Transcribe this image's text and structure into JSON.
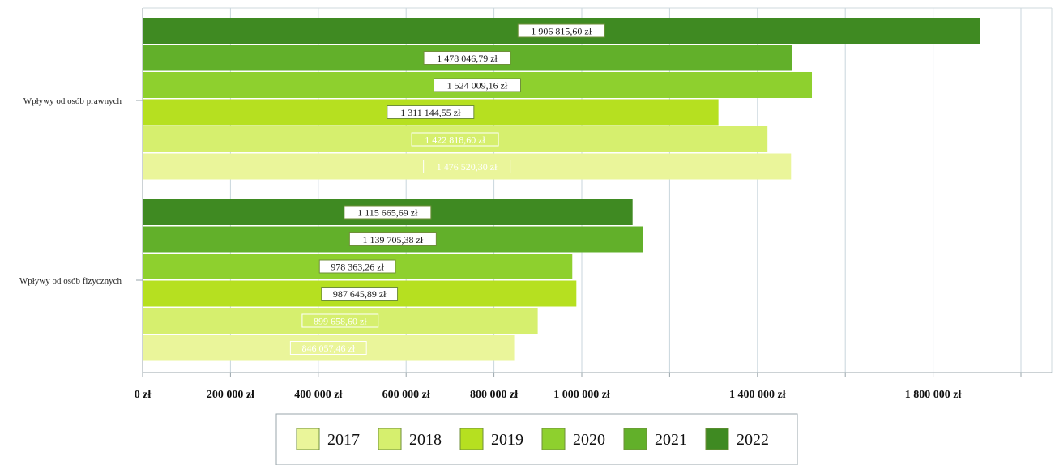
{
  "chart_data": {
    "type": "bar",
    "orientation": "horizontal",
    "categories": [
      "Wpływy od osób prawnych",
      "Wpływy od osób fizycznych"
    ],
    "series": [
      {
        "name": "2017",
        "values": [
          1476520.3,
          846057.46
        ],
        "labels": [
          "1 476 520,30 zł",
          "846 057,46 zł"
        ]
      },
      {
        "name": "2018",
        "values": [
          1422818.6,
          899658.6
        ],
        "labels": [
          "1 422 818,60 zł",
          "899 658,60 zł"
        ]
      },
      {
        "name": "2019",
        "values": [
          1311144.55,
          987645.89
        ],
        "labels": [
          "1 311 144,55 zł",
          "987 645,89 zł"
        ]
      },
      {
        "name": "2020",
        "values": [
          1524009.16,
          978363.26
        ],
        "labels": [
          "1 524 009,16 zł",
          "978 363,26 zł"
        ]
      },
      {
        "name": "2021",
        "values": [
          1478046.79,
          1139705.38
        ],
        "labels": [
          "1 478 046,79 zł",
          "1 139 705,38 zł"
        ]
      },
      {
        "name": "2022",
        "values": [
          1906815.6,
          1115665.69
        ],
        "labels": [
          "1 906 815,60 zł",
          "1 115 665,69 zł"
        ]
      }
    ],
    "xlim": [
      0,
      2000000
    ],
    "x_tick_values": [
      0,
      200000,
      400000,
      600000,
      800000,
      1000000,
      1400000,
      1800000
    ],
    "x_tick_labels": [
      "0 zł",
      "200 000 zł",
      "400 000 zł",
      "600 000 zł",
      "800 000 zł",
      "1 000 000 zł",
      "1 400 000 zł",
      "1 800 000 zł"
    ],
    "grid": true,
    "legend_position": "bottom",
    "colors": {
      "2017": "#eaf59a",
      "2018": "#d6ef6e",
      "2019": "#b6e020",
      "2020": "#8ed02e",
      "2021": "#62b02a",
      "2022": "#3f8a22"
    },
    "title": "",
    "xlabel": "",
    "ylabel": ""
  }
}
